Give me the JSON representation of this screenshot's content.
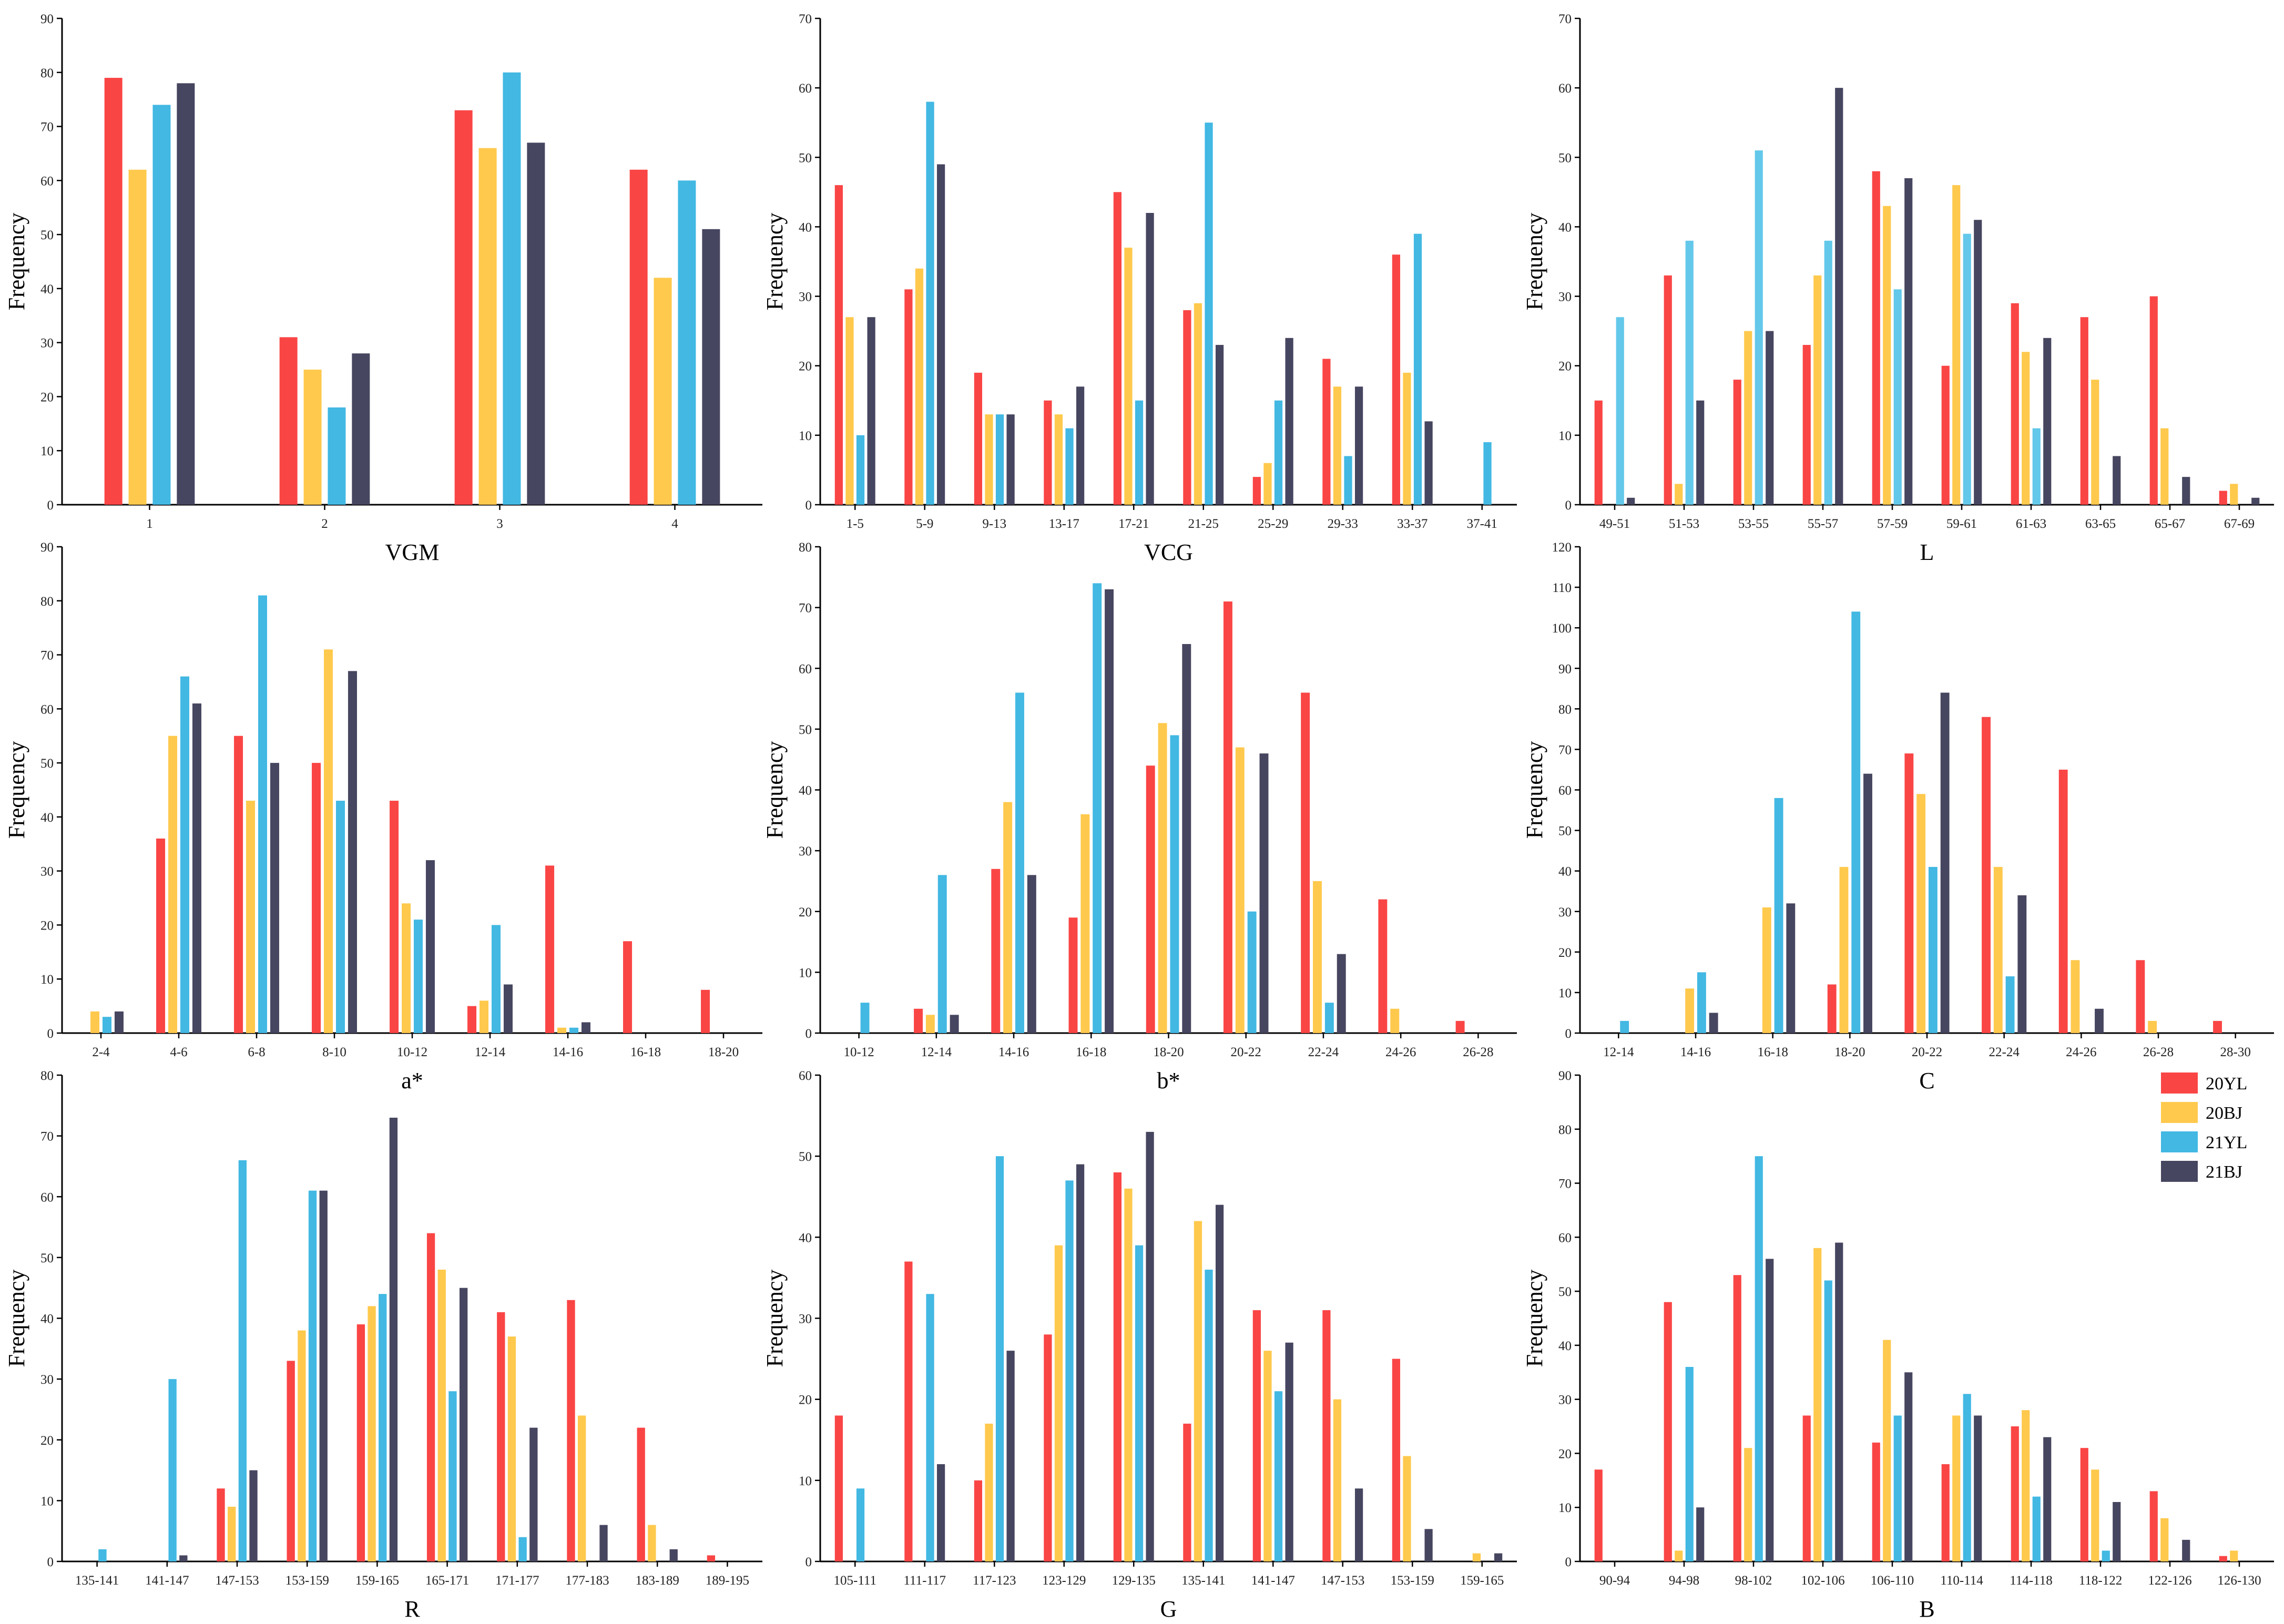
{
  "colors": {
    "20YL": "#fa4545",
    "20BJ": "#ffc94d",
    "21YL": "#42b8e3",
    "21BJ": "#474660",
    "L_21YL": "#63c8ea"
  },
  "legend": {
    "title": "",
    "entries": [
      "20YL",
      "20BJ",
      "21YL",
      "21BJ"
    ],
    "placement": "right of bottom-right panel"
  },
  "series_names": [
    "20YL",
    "20BJ",
    "21YL",
    "21BJ"
  ],
  "ylabel": "Frequency",
  "chart_data": [
    {
      "id": "vgm",
      "type": "bar",
      "xlabel": "VGM",
      "ylabel": "Frequency",
      "ylim": [
        0,
        90
      ],
      "yticks": [
        0,
        10,
        20,
        30,
        40,
        50,
        60,
        70,
        80,
        90
      ],
      "categories": [
        "1",
        "2",
        "3",
        "4"
      ],
      "series": [
        {
          "name": "20YL",
          "values": [
            79,
            31,
            73,
            62
          ]
        },
        {
          "name": "20BJ",
          "values": [
            62,
            25,
            66,
            42
          ]
        },
        {
          "name": "21YL",
          "values": [
            74,
            18,
            80,
            60
          ]
        },
        {
          "name": "21BJ",
          "values": [
            78,
            28,
            67,
            51
          ]
        }
      ]
    },
    {
      "id": "vcg",
      "type": "bar",
      "xlabel": "VCG",
      "ylabel": "Frequency",
      "ylim": [
        0,
        70
      ],
      "yticks": [
        0,
        10,
        20,
        30,
        40,
        50,
        60,
        70
      ],
      "categories": [
        "1-5",
        "5-9",
        "9-13",
        "13-17",
        "17-21",
        "21-25",
        "25-29",
        "29-33",
        "33-37",
        "37-41"
      ],
      "series": [
        {
          "name": "20YL",
          "values": [
            46,
            31,
            19,
            15,
            45,
            28,
            4,
            21,
            36,
            0
          ]
        },
        {
          "name": "20BJ",
          "values": [
            27,
            34,
            13,
            13,
            37,
            29,
            6,
            17,
            19,
            0
          ]
        },
        {
          "name": "21YL",
          "values": [
            10,
            58,
            13,
            11,
            15,
            55,
            15,
            7,
            39,
            9
          ]
        },
        {
          "name": "21BJ",
          "values": [
            27,
            49,
            13,
            17,
            42,
            23,
            24,
            17,
            12,
            0
          ]
        }
      ]
    },
    {
      "id": "l",
      "type": "bar",
      "xlabel": "L",
      "ylabel": "Frequency",
      "ylim": [
        0,
        70
      ],
      "yticks": [
        0,
        10,
        20,
        30,
        40,
        50,
        60,
        70
      ],
      "categories": [
        "49-51",
        "51-53",
        "53-55",
        "55-57",
        "57-59",
        "59-61",
        "61-63",
        "63-65",
        "65-67",
        "67-69"
      ],
      "series": [
        {
          "name": "20YL",
          "values": [
            15,
            33,
            18,
            23,
            48,
            20,
            29,
            27,
            30,
            2
          ]
        },
        {
          "name": "20BJ",
          "values": [
            0,
            3,
            25,
            33,
            43,
            46,
            22,
            18,
            11,
            3
          ]
        },
        {
          "name": "21YL",
          "values": [
            27,
            38,
            51,
            38,
            31,
            39,
            11,
            0,
            0,
            0
          ]
        },
        {
          "name": "21BJ",
          "values": [
            1,
            15,
            25,
            60,
            47,
            41,
            24,
            7,
            4,
            1
          ]
        }
      ]
    },
    {
      "id": "a",
      "type": "bar",
      "xlabel": "a*",
      "ylabel": "Frequency",
      "ylim": [
        0,
        90
      ],
      "yticks": [
        0,
        10,
        20,
        30,
        40,
        50,
        60,
        70,
        80,
        90
      ],
      "categories": [
        "2-4",
        "4-6",
        "6-8",
        "8-10",
        "10-12",
        "12-14",
        "14-16",
        "16-18",
        "18-20"
      ],
      "series": [
        {
          "name": "20YL",
          "values": [
            0,
            36,
            55,
            50,
            43,
            5,
            31,
            17,
            8
          ]
        },
        {
          "name": "20BJ",
          "values": [
            4,
            55,
            43,
            71,
            24,
            6,
            1,
            0,
            0
          ]
        },
        {
          "name": "21YL",
          "values": [
            3,
            66,
            81,
            43,
            21,
            20,
            1,
            0,
            0
          ]
        },
        {
          "name": "21BJ",
          "values": [
            4,
            61,
            50,
            67,
            32,
            9,
            2,
            0,
            0
          ]
        }
      ]
    },
    {
      "id": "b",
      "type": "bar",
      "xlabel": "b*",
      "ylabel": "Frequency",
      "ylim": [
        0,
        80
      ],
      "yticks": [
        0,
        10,
        20,
        30,
        40,
        50,
        60,
        70,
        80
      ],
      "categories": [
        "10-12",
        "12-14",
        "14-16",
        "16-18",
        "18-20",
        "20-22",
        "22-24",
        "24-26",
        "26-28"
      ],
      "series": [
        {
          "name": "20YL",
          "values": [
            0,
            4,
            27,
            19,
            44,
            71,
            56,
            22,
            2
          ]
        },
        {
          "name": "20BJ",
          "values": [
            0,
            3,
            38,
            36,
            51,
            47,
            25,
            4,
            0
          ]
        },
        {
          "name": "21YL",
          "values": [
            5,
            26,
            56,
            74,
            49,
            20,
            5,
            0,
            0
          ]
        },
        {
          "name": "21BJ",
          "values": [
            0,
            3,
            26,
            73,
            64,
            46,
            13,
            0,
            0
          ]
        }
      ]
    },
    {
      "id": "c",
      "type": "bar",
      "xlabel": "C",
      "ylabel": "Frequency",
      "ylim": [
        0,
        120
      ],
      "yticks": [
        0,
        10,
        20,
        30,
        40,
        50,
        60,
        70,
        80,
        90,
        100,
        110,
        120
      ],
      "categories": [
        "12-14",
        "14-16",
        "16-18",
        "18-20",
        "20-22",
        "22-24",
        "24-26",
        "26-28",
        "28-30"
      ],
      "series": [
        {
          "name": "20YL",
          "values": [
            0,
            0,
            0,
            12,
            69,
            78,
            65,
            18,
            3
          ]
        },
        {
          "name": "20BJ",
          "values": [
            0,
            11,
            31,
            41,
            59,
            41,
            18,
            3,
            0
          ]
        },
        {
          "name": "21YL",
          "values": [
            3,
            15,
            58,
            104,
            41,
            14,
            0,
            0,
            0
          ]
        },
        {
          "name": "21BJ",
          "values": [
            0,
            5,
            32,
            64,
            84,
            34,
            6,
            0,
            0
          ]
        }
      ]
    },
    {
      "id": "r",
      "type": "bar",
      "xlabel": "R",
      "ylabel": "Frequency",
      "ylim": [
        0,
        80
      ],
      "yticks": [
        0,
        10,
        20,
        30,
        40,
        50,
        60,
        70,
        80
      ],
      "categories": [
        "135-141",
        "141-147",
        "147-153",
        "153-159",
        "159-165",
        "165-171",
        "171-177",
        "177-183",
        "183-189",
        "189-195"
      ],
      "series": [
        {
          "name": "20YL",
          "values": [
            0,
            0,
            12,
            33,
            39,
            54,
            41,
            43,
            22,
            1
          ]
        },
        {
          "name": "20BJ",
          "values": [
            0,
            0,
            9,
            38,
            42,
            48,
            37,
            24,
            6,
            0
          ]
        },
        {
          "name": "21YL",
          "values": [
            2,
            30,
            66,
            61,
            44,
            28,
            4,
            0,
            0,
            0
          ]
        },
        {
          "name": "21BJ",
          "values": [
            0,
            1,
            15,
            61,
            73,
            45,
            22,
            6,
            2,
            0
          ]
        }
      ]
    },
    {
      "id": "g",
      "type": "bar",
      "xlabel": "G",
      "ylabel": "Frequency",
      "ylim": [
        0,
        60
      ],
      "yticks": [
        0,
        10,
        20,
        30,
        40,
        50,
        60
      ],
      "categories": [
        "105-111",
        "111-117",
        "117-123",
        "123-129",
        "129-135",
        "135-141",
        "141-147",
        "147-153",
        "153-159",
        "159-165"
      ],
      "series": [
        {
          "name": "20YL",
          "values": [
            18,
            37,
            10,
            28,
            48,
            17,
            31,
            31,
            25,
            0
          ]
        },
        {
          "name": "20BJ",
          "values": [
            0,
            0,
            17,
            39,
            46,
            42,
            26,
            20,
            13,
            1
          ]
        },
        {
          "name": "21YL",
          "values": [
            9,
            33,
            50,
            47,
            39,
            36,
            21,
            0,
            0,
            0
          ]
        },
        {
          "name": "21BJ",
          "values": [
            0,
            12,
            26,
            49,
            53,
            44,
            27,
            9,
            4,
            1
          ]
        }
      ]
    },
    {
      "id": "bb",
      "type": "bar",
      "xlabel": "B",
      "ylabel": "Frequency",
      "ylim": [
        0,
        90
      ],
      "yticks": [
        0,
        10,
        20,
        30,
        40,
        50,
        60,
        70,
        80,
        90
      ],
      "categories": [
        "90-94",
        "94-98",
        "98-102",
        "102-106",
        "106-110",
        "110-114",
        "114-118",
        "118-122",
        "122-126",
        "126-130"
      ],
      "series": [
        {
          "name": "20YL",
          "values": [
            17,
            48,
            53,
            27,
            22,
            18,
            25,
            21,
            13,
            1
          ]
        },
        {
          "name": "20BJ",
          "values": [
            0,
            2,
            21,
            58,
            41,
            27,
            28,
            17,
            8,
            2
          ]
        },
        {
          "name": "21YL",
          "values": [
            0,
            36,
            75,
            52,
            27,
            31,
            12,
            2,
            0,
            0
          ]
        },
        {
          "name": "21BJ",
          "values": [
            0,
            10,
            56,
            59,
            35,
            27,
            23,
            11,
            4,
            0
          ]
        }
      ]
    }
  ]
}
